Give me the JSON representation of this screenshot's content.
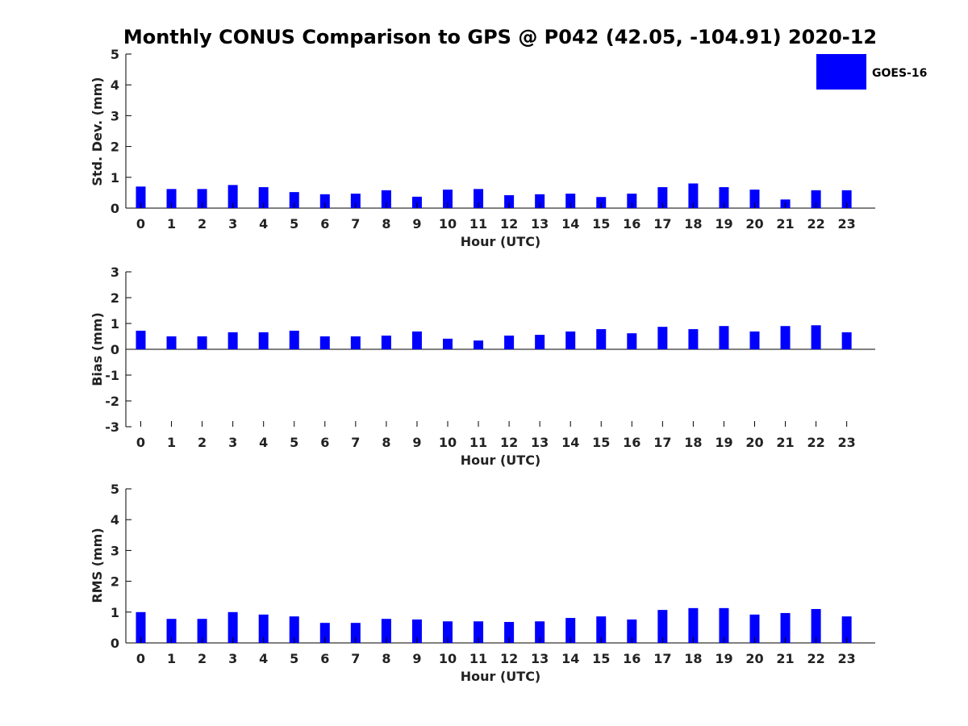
{
  "figure": {
    "title": "Monthly CONUS Comparison to GPS @ P042 (42.05, -104.91) 2020-12",
    "legend": {
      "label": "GOES-16",
      "color": "#0000ff",
      "placement": "top-right"
    }
  },
  "chart_data": [
    {
      "type": "bar",
      "xlabel": "Hour (UTC)",
      "ylabel": "Std. Dev. (mm)",
      "ylim": [
        0,
        5
      ],
      "yticks": [
        0,
        1,
        2,
        3,
        4,
        5
      ],
      "categories": [
        "0",
        "1",
        "2",
        "3",
        "4",
        "5",
        "6",
        "7",
        "8",
        "9",
        "10",
        "11",
        "12",
        "13",
        "14",
        "15",
        "16",
        "17",
        "18",
        "19",
        "20",
        "21",
        "22",
        "23"
      ],
      "series": [
        {
          "name": "GOES-16",
          "color": "#0000ff",
          "values": [
            0.7,
            0.62,
            0.62,
            0.75,
            0.68,
            0.52,
            0.45,
            0.47,
            0.58,
            0.37,
            0.6,
            0.62,
            0.42,
            0.45,
            0.47,
            0.36,
            0.47,
            0.68,
            0.8,
            0.68,
            0.6,
            0.28,
            0.58,
            0.58
          ]
        }
      ]
    },
    {
      "type": "bar",
      "xlabel": "Hour (UTC)",
      "ylabel": "Bias (mm)",
      "ylim": [
        -3,
        3
      ],
      "yticks": [
        -3,
        -2,
        -1,
        0,
        1,
        2,
        3
      ],
      "categories": [
        "0",
        "1",
        "2",
        "3",
        "4",
        "5",
        "6",
        "7",
        "8",
        "9",
        "10",
        "11",
        "12",
        "13",
        "14",
        "15",
        "16",
        "17",
        "18",
        "19",
        "20",
        "21",
        "22",
        "23"
      ],
      "series": [
        {
          "name": "GOES-16",
          "color": "#0000ff",
          "values": [
            0.72,
            0.5,
            0.5,
            0.66,
            0.66,
            0.72,
            0.5,
            0.5,
            0.53,
            0.69,
            0.41,
            0.34,
            0.53,
            0.56,
            0.69,
            0.78,
            0.62,
            0.87,
            0.78,
            0.9,
            0.69,
            0.9,
            0.93,
            0.66
          ]
        }
      ]
    },
    {
      "type": "bar",
      "xlabel": "Hour (UTC)",
      "ylabel": "RMS (mm)",
      "ylim": [
        0,
        5
      ],
      "yticks": [
        0,
        1,
        2,
        3,
        4,
        5
      ],
      "categories": [
        "0",
        "1",
        "2",
        "3",
        "4",
        "5",
        "6",
        "7",
        "8",
        "9",
        "10",
        "11",
        "12",
        "13",
        "14",
        "15",
        "16",
        "17",
        "18",
        "19",
        "20",
        "21",
        "22",
        "23"
      ],
      "series": [
        {
          "name": "GOES-16",
          "color": "#0000ff",
          "values": [
            1.0,
            0.78,
            0.78,
            1.0,
            0.92,
            0.86,
            0.65,
            0.65,
            0.78,
            0.76,
            0.7,
            0.7,
            0.68,
            0.7,
            0.81,
            0.86,
            0.76,
            1.07,
            1.13,
            1.13,
            0.92,
            0.97,
            1.1,
            0.86
          ]
        }
      ]
    }
  ]
}
